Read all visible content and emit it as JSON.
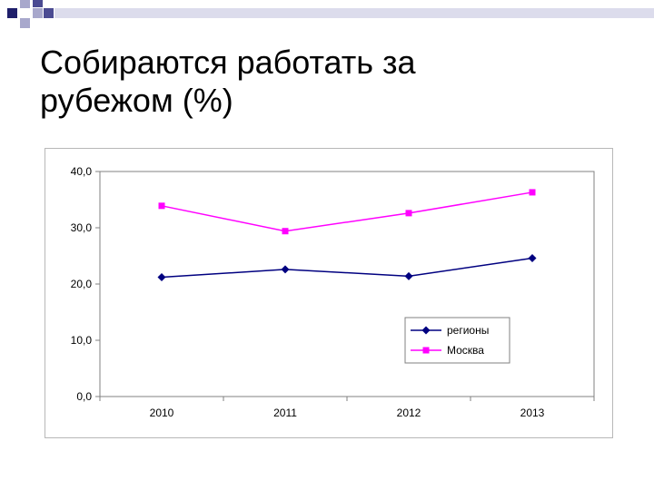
{
  "slide": {
    "title_line1": "Собираются работать за",
    "title_line2": "рубежом (%)"
  },
  "colors": {
    "deco_dark": "#1f1f6b",
    "deco_mid": "#4b4b92",
    "deco_light": "#a8a8cc",
    "deco_pale": "#dcdcec",
    "series_regions": "#000080",
    "series_moscow": "#ff00ff"
  },
  "chart_data": {
    "type": "line",
    "title": "",
    "xlabel": "",
    "ylabel": "",
    "categories": [
      "2010",
      "2011",
      "2012",
      "2013"
    ],
    "ylim": [
      0,
      40
    ],
    "yticks": [
      "0,0",
      "10,0",
      "20,0",
      "30,0",
      "40,0"
    ],
    "grid": false,
    "legend_position": "bottom-right",
    "series": [
      {
        "name": "регионы",
        "values": [
          21.2,
          22.6,
          21.4,
          24.6
        ],
        "color": "#000080",
        "marker": "diamond"
      },
      {
        "name": "Москва",
        "values": [
          33.9,
          29.4,
          32.6,
          36.3
        ],
        "color": "#ff00ff",
        "marker": "square"
      }
    ]
  }
}
